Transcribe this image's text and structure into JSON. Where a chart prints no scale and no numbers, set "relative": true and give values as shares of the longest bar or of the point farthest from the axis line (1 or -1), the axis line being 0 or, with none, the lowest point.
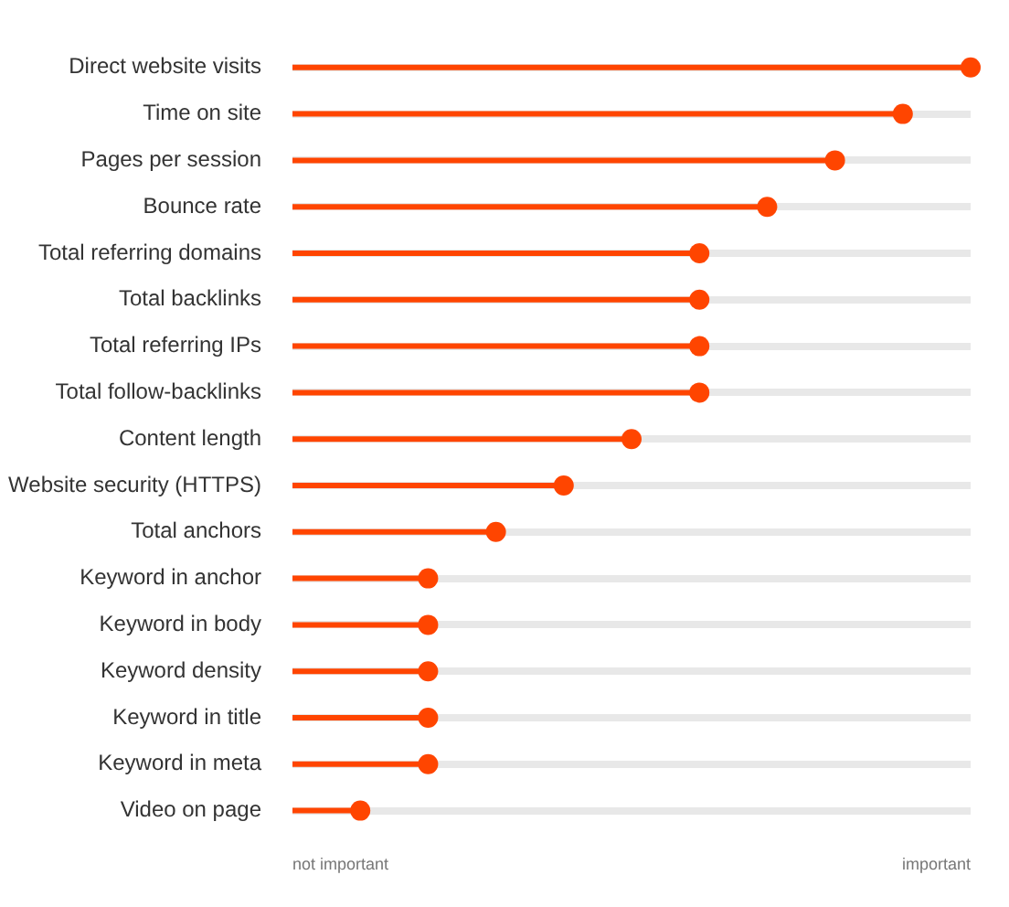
{
  "chart_data": {
    "type": "lollipop",
    "orientation": "horizontal",
    "relative": true,
    "categories": [
      "Direct website visits",
      "Time on site",
      "Pages per session",
      "Bounce rate",
      "Total referring domains",
      "Total backlinks",
      "Total referring IPs",
      "Total follow-backlinks",
      "Content length",
      "Website security (HTTPS)",
      "Total anchors",
      "Keyword in anchor",
      "Keyword in body",
      "Keyword density",
      "Keyword in title",
      "Keyword in meta",
      "Video on page"
    ],
    "values": [
      1,
      0.9,
      0.8,
      0.7,
      0.6,
      0.6,
      0.6,
      0.6,
      0.5,
      0.4,
      0.3,
      0.2,
      0.2,
      0.2,
      0.2,
      0.2,
      0.1
    ],
    "color": "#ff4500",
    "marker": "circle",
    "grid": "y",
    "annotations": [
      "not important",
      "important"
    ]
  }
}
